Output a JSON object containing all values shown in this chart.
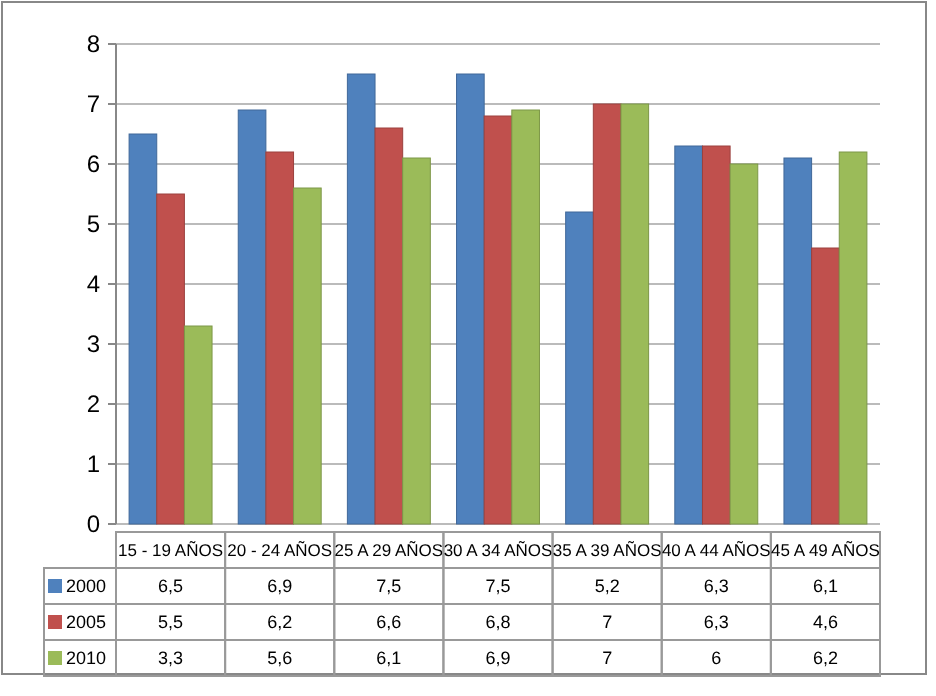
{
  "chart_data": {
    "type": "bar",
    "categories": [
      "15 - 19 AÑOS",
      "20  - 24 AÑOS",
      "25 A 29 AÑOS",
      "30 A 34 AÑOS",
      "35 A 39 AÑOS",
      "40 A 44 AÑOS",
      "45 A 49 AÑOS"
    ],
    "series": [
      {
        "name": "2000",
        "color": "#4f81bd",
        "values": [
          6.5,
          6.9,
          7.5,
          7.5,
          5.2,
          6.3,
          6.1
        ],
        "value_labels": [
          "6,5",
          "6,9",
          "7,5",
          "7,5",
          "5,2",
          "6,3",
          "6,1"
        ]
      },
      {
        "name": "2005",
        "color": "#c0504d",
        "values": [
          5.5,
          6.2,
          6.6,
          6.8,
          7,
          6.3,
          4.6
        ],
        "value_labels": [
          "5,5",
          "6,2",
          "6,6",
          "6,8",
          "7",
          "6,3",
          "4,6"
        ]
      },
      {
        "name": "2010",
        "color": "#9bbb59",
        "values": [
          3.3,
          5.6,
          6.1,
          6.9,
          7,
          6,
          6.2
        ],
        "value_labels": [
          "3,3",
          "5,6",
          "6,1",
          "6,9",
          "7",
          "6",
          "6,2"
        ]
      }
    ],
    "ylim": [
      0,
      8
    ],
    "yticks": [
      0,
      1,
      2,
      3,
      4,
      5,
      6,
      7,
      8
    ],
    "grid": true,
    "legend": "bottom"
  }
}
